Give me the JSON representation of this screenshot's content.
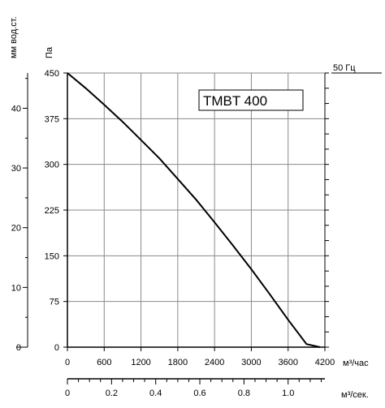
{
  "chart_data": {
    "type": "line",
    "model": "TMBT 400",
    "frequency_label": "50 Гц",
    "left_axis_label": "мм вод.ст.",
    "pa_axis_label": "Па",
    "x_label": "м³/час",
    "x2_label": "м³/сек.",
    "xlim": [
      0,
      4200
    ],
    "ylim": [
      0,
      450
    ],
    "x_ticks": [
      0,
      600,
      1200,
      1800,
      2400,
      3000,
      3600,
      4200
    ],
    "y_ticks": [
      0,
      75,
      150,
      225,
      300,
      375,
      450
    ],
    "mm_ticks": [
      0,
      10,
      20,
      30,
      40
    ],
    "x2_ticks": [
      "0",
      "0.2",
      "0.4",
      "0.6",
      "0.8",
      "1.0"
    ],
    "grid": true,
    "series": [
      {
        "x": [
          0,
          300,
          600,
          900,
          1200,
          1500,
          1800,
          2100,
          2400,
          2700,
          3000,
          3300,
          3600,
          3900,
          4120
        ],
        "y": [
          450,
          425,
          398,
          370,
          340,
          310,
          276,
          242,
          205,
          167,
          128,
          87,
          45,
          5,
          0
        ]
      }
    ]
  }
}
